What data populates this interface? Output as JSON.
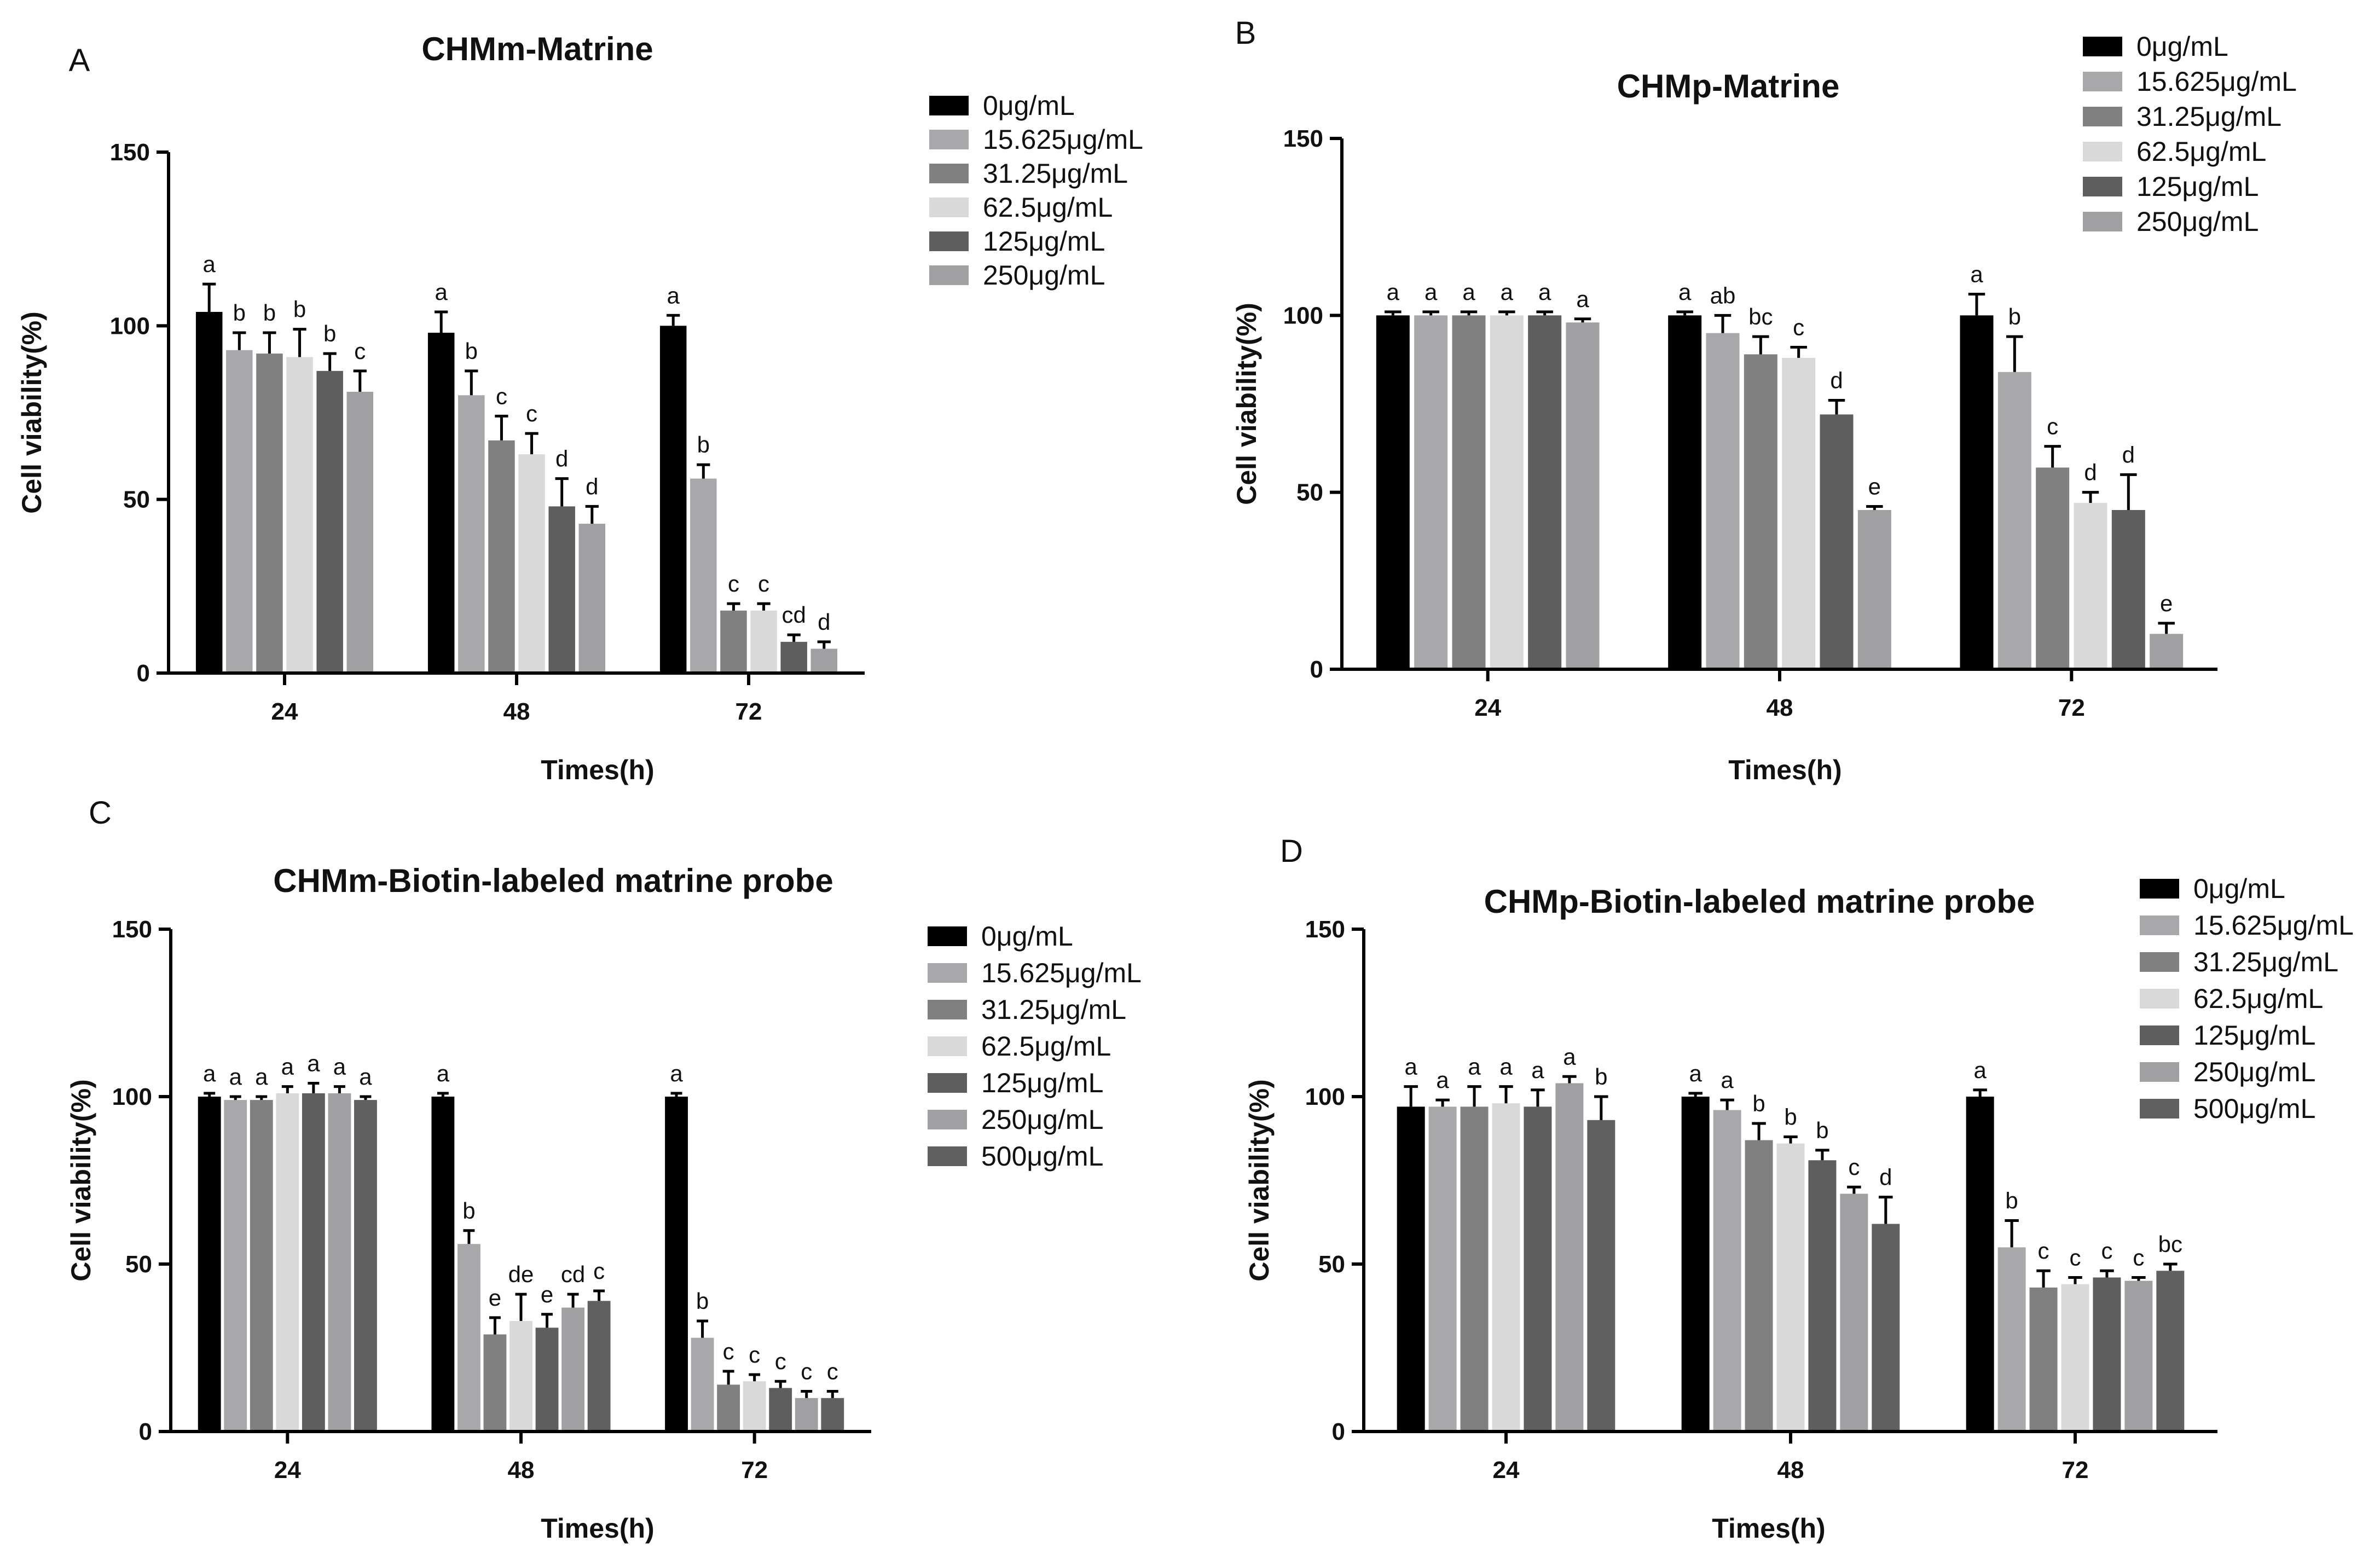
{
  "chart_data": [
    {
      "panel": "A",
      "type": "bar",
      "title": "CHMm-Matrine",
      "xlabel": "Times(h)",
      "ylabel": "Cell viability(%)",
      "ylim": [
        0,
        150
      ],
      "yticks": [
        0,
        50,
        100,
        150
      ],
      "categories": [
        "24",
        "48",
        "72"
      ],
      "legend_position": "top-right",
      "series": [
        {
          "name": "0μg/mL",
          "color": "#000000",
          "values": [
            104,
            98,
            100
          ],
          "errors": [
            8,
            6,
            3
          ],
          "letters": [
            "a",
            "a",
            "a"
          ]
        },
        {
          "name": "15.625μg/mL",
          "color": "#a8a8ab",
          "values": [
            93,
            80,
            56
          ],
          "errors": [
            5,
            7,
            4
          ],
          "letters": [
            "b",
            "b",
            "b"
          ]
        },
        {
          "name": "31.25μg/mL",
          "color": "#808080",
          "values": [
            92,
            67,
            18
          ],
          "errors": [
            6,
            7,
            2
          ],
          "letters": [
            "b",
            "c",
            "c"
          ]
        },
        {
          "name": "62.5μg/mL",
          "color": "#d9d9d9",
          "values": [
            91,
            63,
            18
          ],
          "errors": [
            8,
            6,
            2
          ],
          "letters": [
            "b",
            "c",
            "c"
          ]
        },
        {
          "name": "125μg/mL",
          "color": "#5e5e5e",
          "values": [
            87,
            48,
            9
          ],
          "errors": [
            5,
            8,
            2
          ],
          "letters": [
            "b",
            "d",
            "cd"
          ]
        },
        {
          "name": "250μg/mL",
          "color": "#a0a0a3",
          "values": [
            81,
            43,
            7
          ],
          "errors": [
            6,
            5,
            2
          ],
          "letters": [
            "c",
            "d",
            "d"
          ]
        }
      ]
    },
    {
      "panel": "B",
      "type": "bar",
      "title": "CHMp-Matrine",
      "xlabel": "Times(h)",
      "ylabel": "Cell viability(%)",
      "ylim": [
        0,
        150
      ],
      "yticks": [
        0,
        50,
        100,
        150
      ],
      "categories": [
        "24",
        "48",
        "72"
      ],
      "legend_position": "top-right",
      "series": [
        {
          "name": "0μg/mL",
          "color": "#000000",
          "values": [
            100,
            100,
            100
          ],
          "errors": [
            1,
            1,
            6
          ],
          "letters": [
            "a",
            "a",
            "a"
          ]
        },
        {
          "name": "15.625μg/mL",
          "color": "#a8a8ab",
          "values": [
            100,
            95,
            84
          ],
          "errors": [
            1,
            5,
            10
          ],
          "letters": [
            "a",
            "ab",
            "b"
          ]
        },
        {
          "name": "31.25μg/mL",
          "color": "#808080",
          "values": [
            100,
            89,
            57
          ],
          "errors": [
            1,
            5,
            6
          ],
          "letters": [
            "a",
            "bc",
            "c"
          ]
        },
        {
          "name": "62.5μg/mL",
          "color": "#d9d9d9",
          "values": [
            100,
            88,
            47
          ],
          "errors": [
            1,
            3,
            3
          ],
          "letters": [
            "a",
            "c",
            "d"
          ]
        },
        {
          "name": "125μg/mL",
          "color": "#5e5e5e",
          "values": [
            100,
            72,
            45
          ],
          "errors": [
            1,
            4,
            10
          ],
          "letters": [
            "a",
            "d",
            "d"
          ]
        },
        {
          "name": "250μg/mL",
          "color": "#a0a0a3",
          "values": [
            98,
            45,
            10
          ],
          "errors": [
            1,
            1,
            3
          ],
          "letters": [
            "a",
            "e",
            "e"
          ]
        }
      ]
    },
    {
      "panel": "C",
      "type": "bar",
      "title": "CHMm-Biotin-labeled matrine probe",
      "xlabel": "Times(h)",
      "ylabel": "Cell viability(%)",
      "ylim": [
        0,
        150
      ],
      "yticks": [
        0,
        50,
        100,
        150
      ],
      "categories": [
        "24",
        "48",
        "72"
      ],
      "legend_position": "top-right",
      "series": [
        {
          "name": "0μg/mL",
          "color": "#000000",
          "values": [
            100,
            100,
            100
          ],
          "errors": [
            1,
            1,
            1
          ],
          "letters": [
            "a",
            "a",
            "a"
          ]
        },
        {
          "name": "15.625μg/mL",
          "color": "#a8a8ab",
          "values": [
            99,
            56,
            28
          ],
          "errors": [
            1,
            4,
            5
          ],
          "letters": [
            "a",
            "b",
            "b"
          ]
        },
        {
          "name": "31.25μg/mL",
          "color": "#808080",
          "values": [
            99,
            29,
            14
          ],
          "errors": [
            1,
            5,
            4
          ],
          "letters": [
            "a",
            "e",
            "c"
          ]
        },
        {
          "name": "62.5μg/mL",
          "color": "#d9d9d9",
          "values": [
            101,
            33,
            15
          ],
          "errors": [
            2,
            8,
            2
          ],
          "letters": [
            "a",
            "de",
            "c"
          ]
        },
        {
          "name": "125μg/mL",
          "color": "#5e5e5e",
          "values": [
            101,
            31,
            13
          ],
          "errors": [
            3,
            4,
            2
          ],
          "letters": [
            "a",
            "e",
            "c"
          ]
        },
        {
          "name": "250μg/mL",
          "color": "#a0a0a3",
          "values": [
            101,
            37,
            10
          ],
          "errors": [
            2,
            4,
            2
          ],
          "letters": [
            "a",
            "cd",
            "c"
          ]
        },
        {
          "name": "500μg/mL",
          "color": "#606060",
          "values": [
            99,
            39,
            10
          ],
          "errors": [
            1,
            3,
            2
          ],
          "letters": [
            "a",
            "c",
            "c"
          ]
        }
      ]
    },
    {
      "panel": "D",
      "type": "bar",
      "title": "CHMp-Biotin-labeled matrine probe",
      "xlabel": "Times(h)",
      "ylabel": "Cell viability(%)",
      "ylim": [
        0,
        150
      ],
      "yticks": [
        0,
        50,
        100,
        150
      ],
      "categories": [
        "24",
        "48",
        "72"
      ],
      "legend_position": "top-right",
      "series": [
        {
          "name": "0μg/mL",
          "color": "#000000",
          "values": [
            97,
            100,
            100
          ],
          "errors": [
            6,
            1,
            2
          ],
          "letters": [
            "a",
            "a",
            "a"
          ]
        },
        {
          "name": "15.625μg/mL",
          "color": "#a8a8ab",
          "values": [
            97,
            96,
            55
          ],
          "errors": [
            2,
            3,
            8
          ],
          "letters": [
            "a",
            "a",
            "b"
          ]
        },
        {
          "name": "31.25μg/mL",
          "color": "#808080",
          "values": [
            97,
            87,
            43
          ],
          "errors": [
            6,
            5,
            5
          ],
          "letters": [
            "a",
            "b",
            "c"
          ]
        },
        {
          "name": "62.5μg/mL",
          "color": "#d9d9d9",
          "values": [
            98,
            86,
            44
          ],
          "errors": [
            5,
            2,
            2
          ],
          "letters": [
            "a",
            "b",
            "c"
          ]
        },
        {
          "name": "125μg/mL",
          "color": "#5e5e5e",
          "values": [
            97,
            81,
            46
          ],
          "errors": [
            5,
            3,
            2
          ],
          "letters": [
            "a",
            "b",
            "c"
          ]
        },
        {
          "name": "250μg/mL",
          "color": "#a0a0a3",
          "values": [
            104,
            71,
            45
          ],
          "errors": [
            2,
            2,
            1
          ],
          "letters": [
            "a",
            "c",
            "c"
          ]
        },
        {
          "name": "500μg/mL",
          "color": "#606060",
          "values": [
            93,
            62,
            48
          ],
          "errors": [
            7,
            8,
            2
          ],
          "letters": [
            "b",
            "d",
            "bc"
          ]
        }
      ]
    }
  ]
}
